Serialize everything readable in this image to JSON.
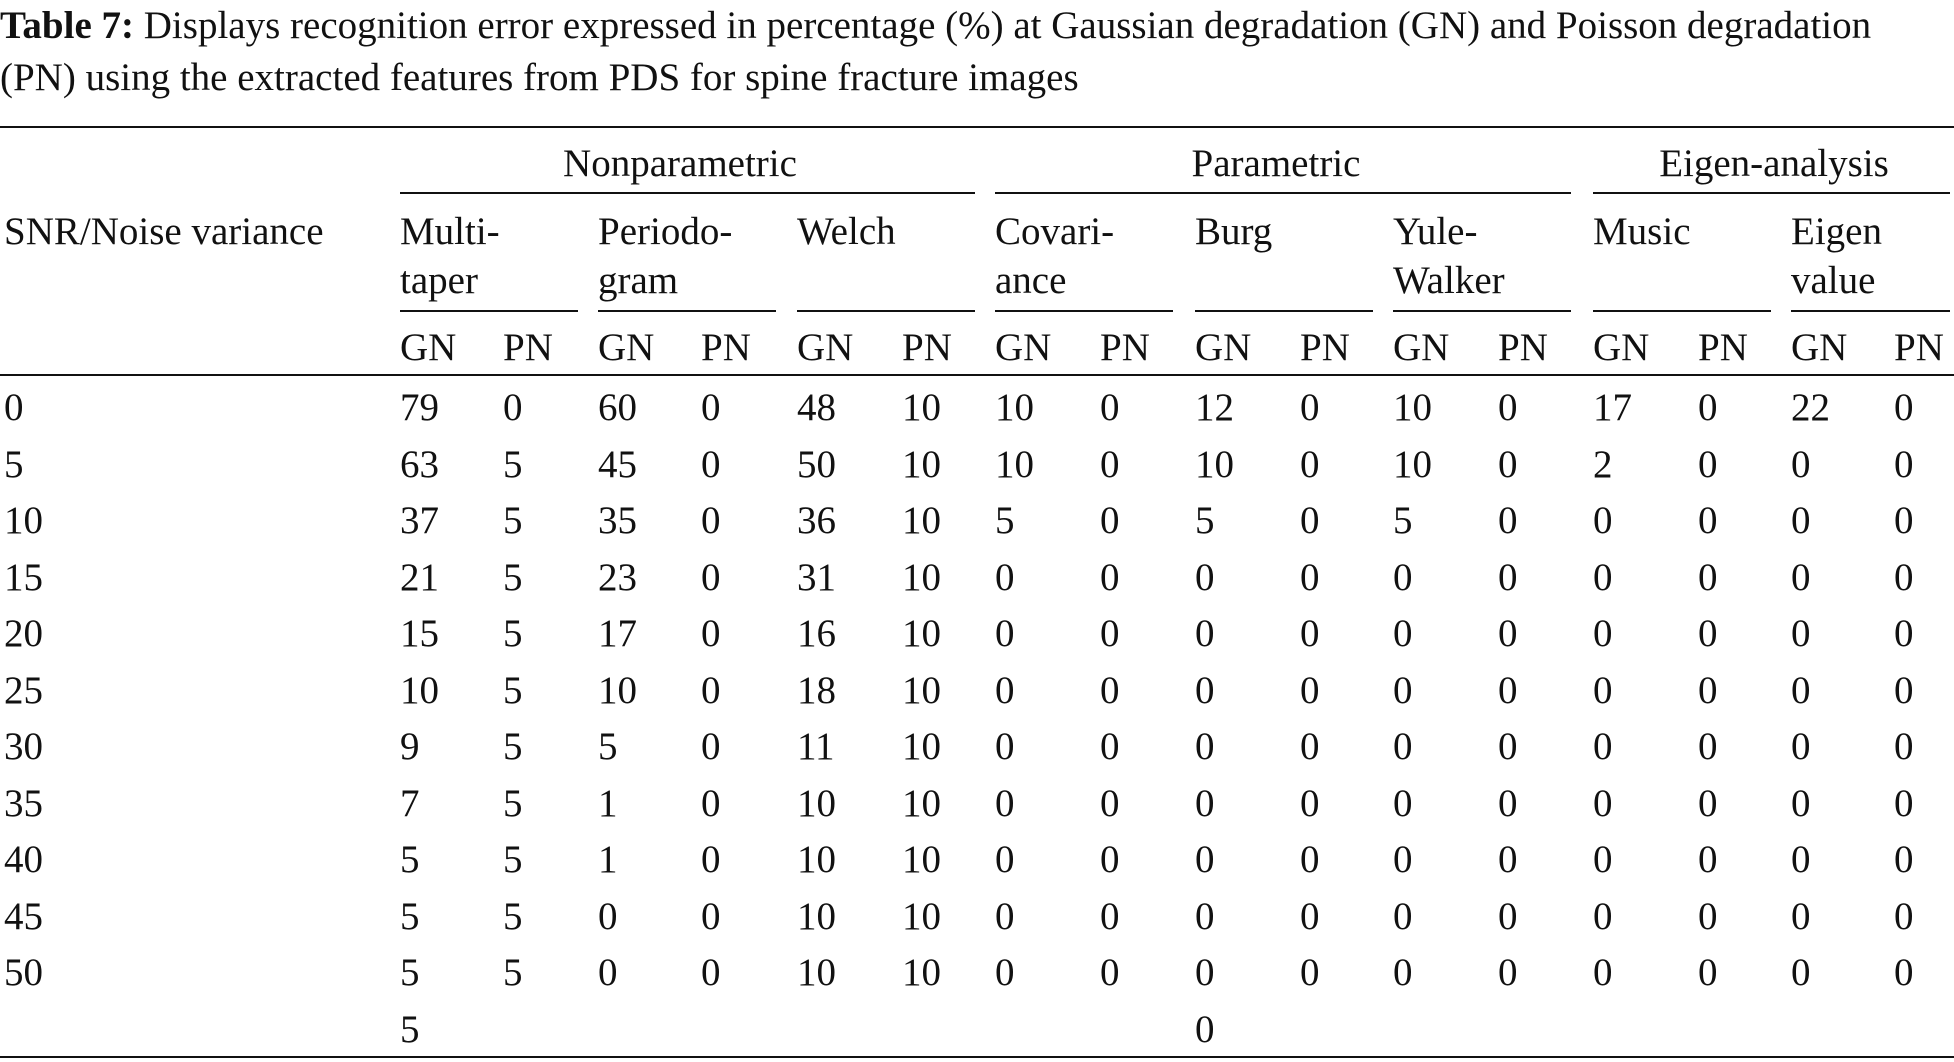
{
  "caption": {
    "label": "Table 7:",
    "text": " Displays recognition error expressed in percentage (%) at Gaussian degradation (GN) and Poisson degradation (PN) using the extracted features from PDS for spine fracture images"
  },
  "table": {
    "row_header": "SNR/Noise variance",
    "groups": [
      "Nonparametric",
      "Parametric",
      "Eigen-analysis"
    ],
    "methods": [
      [
        "Multi-",
        "taper"
      ],
      [
        "Periodo-",
        "gram"
      ],
      [
        "Welch",
        ""
      ],
      [
        "Covari-",
        "ance"
      ],
      [
        "Burg",
        ""
      ],
      [
        "Yule-",
        "Walker"
      ],
      [
        "Music",
        ""
      ],
      [
        "Eigen",
        "value"
      ]
    ],
    "sub_gn": "GN",
    "sub_pn": "PN",
    "rows": [
      [
        "0",
        "79",
        "0",
        "60",
        "0",
        "48",
        "10",
        "10",
        "0",
        "12",
        "0",
        "10",
        "0",
        "17",
        "0",
        "22",
        "0"
      ],
      [
        "5",
        "63",
        "5",
        "45",
        "0",
        "50",
        "10",
        "10",
        "0",
        "10",
        "0",
        "10",
        "0",
        "2",
        "0",
        "0",
        "0"
      ],
      [
        "10",
        "37",
        "5",
        "35",
        "0",
        "36",
        "10",
        "5",
        "0",
        "5",
        "0",
        "5",
        "0",
        "0",
        "0",
        "0",
        "0"
      ],
      [
        "15",
        "21",
        "5",
        "23",
        "0",
        "31",
        "10",
        "0",
        "0",
        "0",
        "0",
        "0",
        "0",
        "0",
        "0",
        "0",
        "0"
      ],
      [
        "20",
        "15",
        "5",
        "17",
        "0",
        "16",
        "10",
        "0",
        "0",
        "0",
        "0",
        "0",
        "0",
        "0",
        "0",
        "0",
        "0"
      ],
      [
        "25",
        "10",
        "5",
        "10",
        "0",
        "18",
        "10",
        "0",
        "0",
        "0",
        "0",
        "0",
        "0",
        "0",
        "0",
        "0",
        "0"
      ],
      [
        "30",
        "9",
        "5",
        "5",
        "0",
        "11",
        "10",
        "0",
        "0",
        "0",
        "0",
        "0",
        "0",
        "0",
        "0",
        "0",
        "0"
      ],
      [
        "35",
        "7",
        "5",
        "1",
        "0",
        "10",
        "10",
        "0",
        "0",
        "0",
        "0",
        "0",
        "0",
        "0",
        "0",
        "0",
        "0"
      ],
      [
        "40",
        "5",
        "5",
        "1",
        "0",
        "10",
        "10",
        "0",
        "0",
        "0",
        "0",
        "0",
        "0",
        "0",
        "0",
        "0",
        "0"
      ],
      [
        "45",
        "5",
        "5",
        "0",
        "0",
        "10",
        "10",
        "0",
        "0",
        "0",
        "0",
        "0",
        "0",
        "0",
        "0",
        "0",
        "0"
      ],
      [
        "50",
        "5",
        "5",
        "0",
        "0",
        "10",
        "10",
        "0",
        "0",
        "0",
        "0",
        "0",
        "0",
        "0",
        "0",
        "0",
        "0"
      ],
      [
        "",
        "5",
        "",
        "",
        "",
        "",
        "",
        "",
        "",
        "0",
        "",
        "",
        "",
        "",
        "",
        "",
        ""
      ]
    ]
  }
}
